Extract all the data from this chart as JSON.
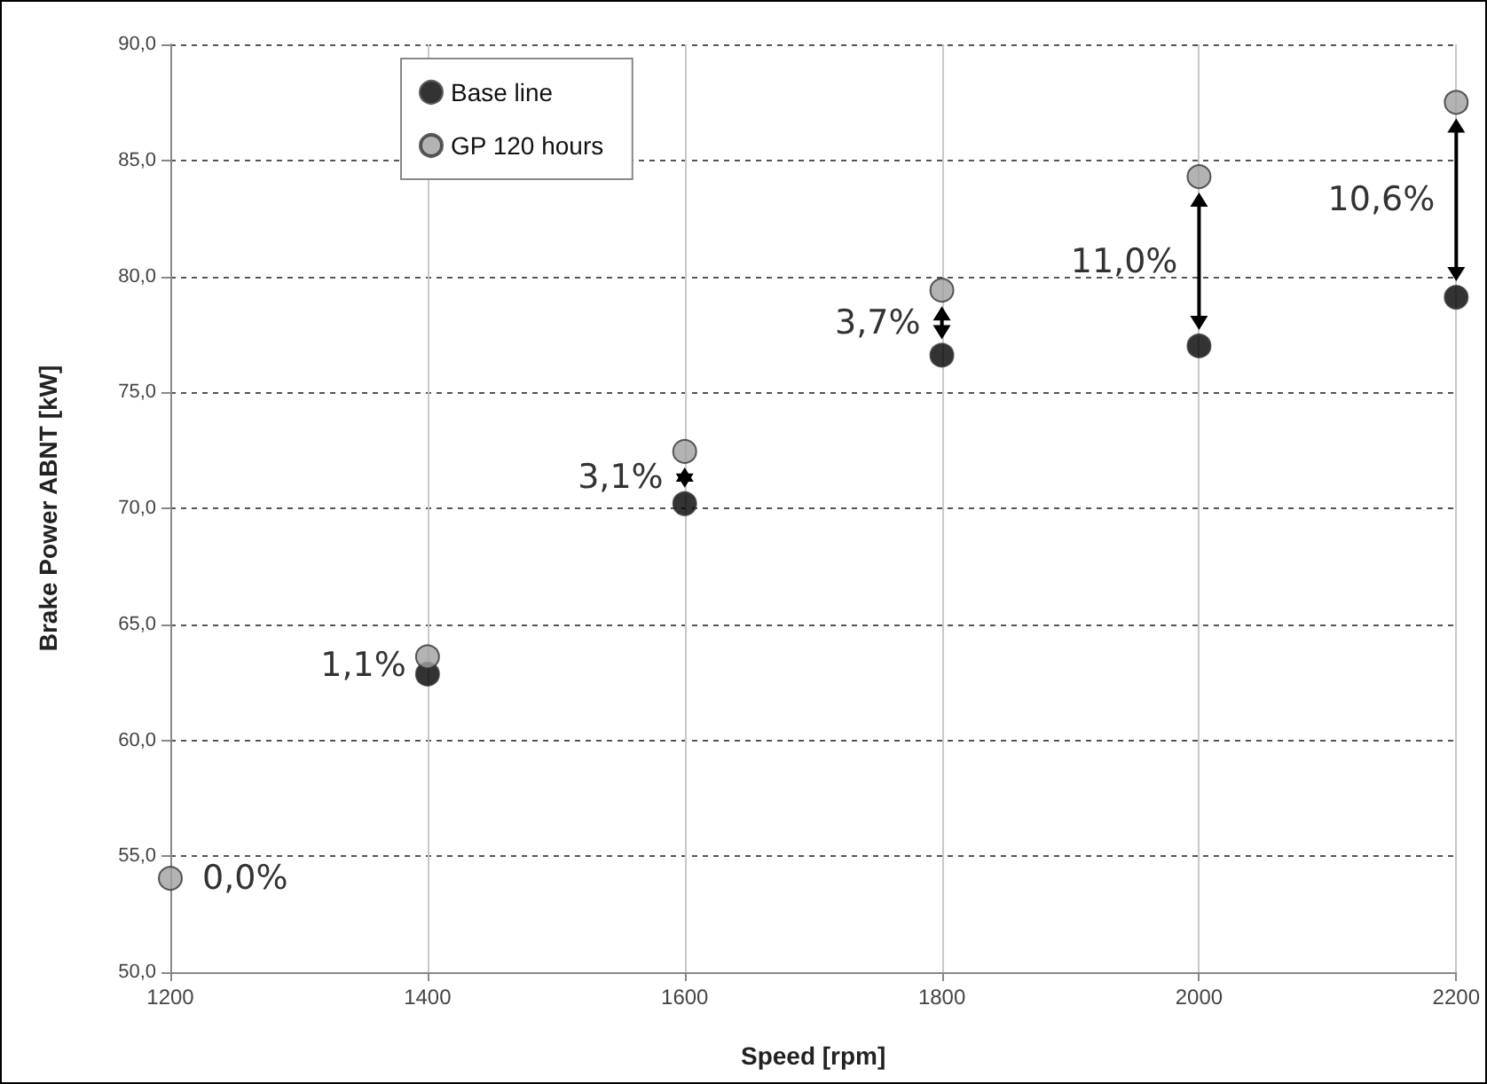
{
  "chart_data": {
    "type": "scatter",
    "xlabel": "Speed [rpm]",
    "ylabel": "Brake Power ABNT [kW]",
    "x": [
      1200,
      1400,
      1600,
      1800,
      2000,
      2200
    ],
    "series": [
      {
        "name": "Base line",
        "color": "#000000",
        "values": [
          null,
          62.85,
          70.2,
          76.6,
          77.0,
          79.1
        ]
      },
      {
        "name": "GP 120 hours",
        "color": "#a0a0a0",
        "values": [
          54.05,
          63.6,
          72.45,
          79.4,
          84.3,
          87.5
        ]
      }
    ],
    "xlim": [
      1200,
      2200
    ],
    "xticks": [
      1200,
      1400,
      1600,
      1800,
      2000,
      2200
    ],
    "ylim": [
      50,
      90
    ],
    "yticks": [
      {
        "value": 50,
        "label": "50,0"
      },
      {
        "value": 55,
        "label": "55,0"
      },
      {
        "value": 60,
        "label": "60,0"
      },
      {
        "value": 65,
        "label": "65,0"
      },
      {
        "value": 70,
        "label": "70,0"
      },
      {
        "value": 75,
        "label": "75,0"
      },
      {
        "value": 80,
        "label": "80,0"
      },
      {
        "value": 85,
        "label": "85,0"
      },
      {
        "value": 90,
        "label": "90,0"
      }
    ],
    "annotations": [
      {
        "text": "0,0%",
        "x": 1200,
        "y": 54.05
      },
      {
        "text": "1,1%",
        "x": 1400,
        "y": 63.6
      },
      {
        "text": "3,1%",
        "x": 1600,
        "y": 72.45
      },
      {
        "text": "3,7%",
        "x": 1800,
        "y": 79.4
      },
      {
        "text": "11,0%",
        "x": 2000,
        "y": 84.3
      },
      {
        "text": "10,6%",
        "x": 2200,
        "y": 87.5
      }
    ],
    "grid": true,
    "legend": "top left",
    "marker": "circle"
  }
}
